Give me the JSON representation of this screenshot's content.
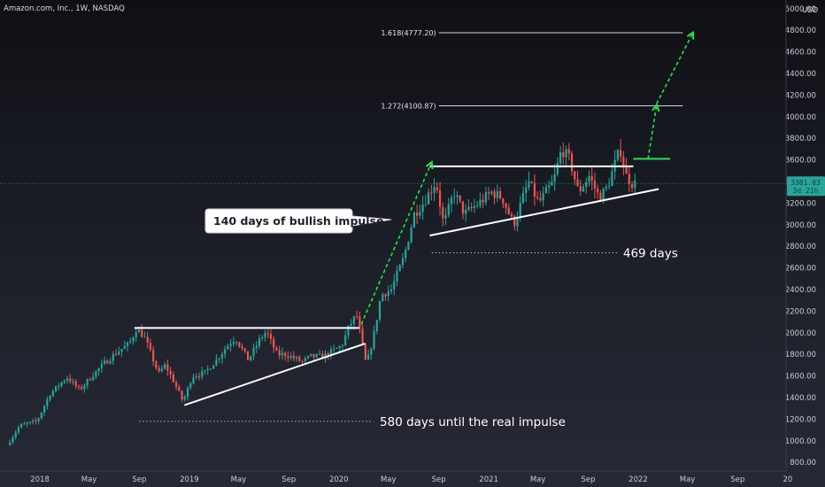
{
  "header": {
    "symbol_title": "Amazon.com, Inc., 1W, NASDAQ",
    "currency": "USD"
  },
  "chart_data": {
    "type": "candlestick",
    "title": "Amazon.com, Inc., 1W, NASDAQ",
    "y_unit": "USD",
    "ylim": [
      720,
      5080
    ],
    "y_ticks": [
      800,
      1000,
      1200,
      1400,
      1600,
      1800,
      2000,
      2200,
      2400,
      2600,
      2800,
      3000,
      3200,
      3400,
      3600,
      3800,
      4000,
      4200,
      4400,
      4600,
      4800,
      5000
    ],
    "y_tick_labels": [
      "800.00",
      "1000.00",
      "1200.00",
      "1400.00",
      "1600.00",
      "1800.00",
      "2000.00",
      "2200.00",
      "2400.00",
      "2600.00",
      "2800.00",
      "3000.00",
      "3200.00",
      "3400.00",
      "3600.00",
      "3800.00",
      "4000.00",
      "4200.00",
      "4400.00",
      "4600.00",
      "4800.00",
      "5000.00"
    ],
    "x_tick_labels": [
      "2018",
      "May",
      "Sep",
      "2019",
      "May",
      "Sep",
      "2020",
      "May",
      "Sep",
      "2021",
      "May",
      "Sep",
      "2022",
      "May",
      "Sep",
      "20"
    ],
    "x_tick_dates": [
      "2018-01-01",
      "2018-05-01",
      "2018-09-01",
      "2019-01-01",
      "2019-05-01",
      "2019-09-01",
      "2020-01-01",
      "2020-05-01",
      "2020-09-01",
      "2021-01-01",
      "2021-05-01",
      "2021-09-01",
      "2022-01-01",
      "2022-05-01",
      "2022-09-01",
      "2023-01-01"
    ],
    "last_price": {
      "value": 3381.83,
      "label": "3381.83",
      "countdown": "3d 21h"
    },
    "price_path": [
      {
        "date": "2017-10-20",
        "price": 960
      },
      {
        "date": "2017-11-20",
        "price": 1140
      },
      {
        "date": "2018-01-01",
        "price": 1180
      },
      {
        "date": "2018-02-01",
        "price": 1430
      },
      {
        "date": "2018-03-15",
        "price": 1590
      },
      {
        "date": "2018-04-15",
        "price": 1470
      },
      {
        "date": "2018-05-15",
        "price": 1600
      },
      {
        "date": "2018-06-15",
        "price": 1720
      },
      {
        "date": "2018-07-15",
        "price": 1820
      },
      {
        "date": "2018-08-15",
        "price": 1900
      },
      {
        "date": "2018-09-01",
        "price": 2040
      },
      {
        "date": "2018-09-20",
        "price": 1960
      },
      {
        "date": "2018-10-10",
        "price": 1770
      },
      {
        "date": "2018-10-25",
        "price": 1620
      },
      {
        "date": "2018-11-10",
        "price": 1700
      },
      {
        "date": "2018-12-01",
        "price": 1550
      },
      {
        "date": "2018-12-24",
        "price": 1360
      },
      {
        "date": "2019-01-15",
        "price": 1600
      },
      {
        "date": "2019-02-15",
        "price": 1630
      },
      {
        "date": "2019-03-15",
        "price": 1750
      },
      {
        "date": "2019-04-15",
        "price": 1900
      },
      {
        "date": "2019-05-01",
        "price": 1950
      },
      {
        "date": "2019-06-01",
        "price": 1750
      },
      {
        "date": "2019-07-01",
        "price": 1950
      },
      {
        "date": "2019-07-15",
        "price": 2010
      },
      {
        "date": "2019-08-10",
        "price": 1800
      },
      {
        "date": "2019-09-01",
        "price": 1800
      },
      {
        "date": "2019-10-10",
        "price": 1730
      },
      {
        "date": "2019-11-01",
        "price": 1780
      },
      {
        "date": "2019-12-01",
        "price": 1780
      },
      {
        "date": "2020-01-15",
        "price": 1880
      },
      {
        "date": "2020-02-01",
        "price": 2050
      },
      {
        "date": "2020-02-20",
        "price": 2170
      },
      {
        "date": "2020-03-15",
        "price": 1700
      },
      {
        "date": "2020-04-01",
        "price": 1950
      },
      {
        "date": "2020-04-20",
        "price": 2350
      },
      {
        "date": "2020-05-15",
        "price": 2400
      },
      {
        "date": "2020-06-15",
        "price": 2700
      },
      {
        "date": "2020-07-10",
        "price": 3100
      },
      {
        "date": "2020-08-01",
        "price": 3200
      },
      {
        "date": "2020-09-01",
        "price": 3400
      },
      {
        "date": "2020-09-20",
        "price": 3000
      },
      {
        "date": "2020-10-15",
        "price": 3300
      },
      {
        "date": "2020-11-10",
        "price": 3100
      },
      {
        "date": "2020-12-15",
        "price": 3200
      },
      {
        "date": "2021-01-15",
        "price": 3300
      },
      {
        "date": "2021-02-10",
        "price": 3250
      },
      {
        "date": "2021-03-10",
        "price": 3000
      },
      {
        "date": "2021-04-15",
        "price": 3400
      },
      {
        "date": "2021-05-10",
        "price": 3200
      },
      {
        "date": "2021-06-15",
        "price": 3400
      },
      {
        "date": "2021-07-05",
        "price": 3700
      },
      {
        "date": "2021-07-25",
        "price": 3600
      },
      {
        "date": "2021-08-15",
        "price": 3300
      },
      {
        "date": "2021-09-10",
        "price": 3450
      },
      {
        "date": "2021-10-05",
        "price": 3250
      },
      {
        "date": "2021-10-25",
        "price": 3350
      },
      {
        "date": "2021-11-15",
        "price": 3600
      },
      {
        "date": "2021-11-25",
        "price": 3700
      },
      {
        "date": "2021-12-10",
        "price": 3450
      },
      {
        "date": "2021-12-25",
        "price": 3380
      }
    ],
    "fib_levels": [
      {
        "label": "1.618(4777.20)",
        "value": 4777.2
      },
      {
        "label": "1.272(4100.87)",
        "value": 4100.87
      }
    ],
    "annotations": [
      "140 days of bullish impulse",
      "469 days",
      "580 days until the real impulse"
    ],
    "colors": {
      "up": "#26a69a",
      "down": "#ef5350",
      "up_bright": "#22c55e",
      "arrow": "#22e34a",
      "trendline": "#ffffff",
      "price_line": "#26a69a"
    }
  }
}
